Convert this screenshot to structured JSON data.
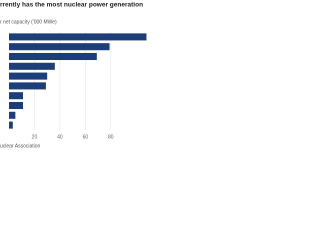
{
  "chart_data": {
    "type": "bar",
    "orientation": "horizontal",
    "title": "rrently has the most nuclear power generation",
    "subtitle": "r net capacity ('000 MWe)",
    "source": "uclear Association",
    "values": [
      108,
      79,
      69,
      36,
      30,
      29,
      11,
      11,
      5,
      3
    ],
    "color": "#1d3e78",
    "xlim": [
      0,
      110
    ],
    "xticks": [
      20,
      40,
      60,
      80
    ],
    "grid": true
  }
}
